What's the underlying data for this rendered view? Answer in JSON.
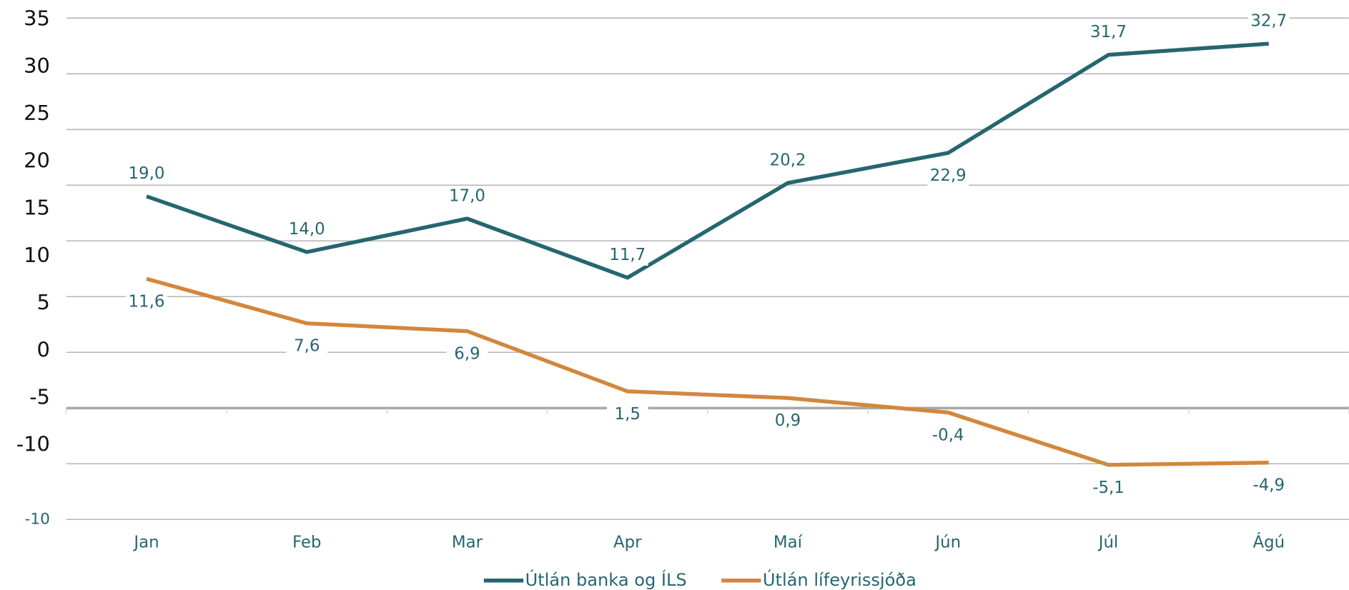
{
  "chart_data": {
    "type": "line",
    "categories": [
      "Jan",
      "Feb",
      "Mar",
      "Apr",
      "Maí",
      "Jún",
      "Júl",
      "Ágú"
    ],
    "series": [
      {
        "name": "Útlán banka og ÍLS",
        "color": "#256670",
        "values": [
          19.0,
          14.0,
          17.0,
          11.7,
          20.2,
          22.9,
          31.7,
          32.7
        ],
        "value_labels": [
          "19,0",
          "14,0",
          "17,0",
          "11,7",
          "20,2",
          "22,9",
          "31,7",
          "32,7"
        ]
      },
      {
        "name": "Útlán lífeyrissjóða",
        "color": "#d2873c",
        "values": [
          11.6,
          7.6,
          6.9,
          1.5,
          0.9,
          -0.4,
          -5.1,
          -4.9
        ],
        "value_labels": [
          "11,6",
          "7,6",
          "6,9",
          "1,5",
          "0,9",
          "-0,4",
          "-5,1",
          "-4,9"
        ]
      }
    ],
    "ylim": [
      -10,
      35
    ],
    "yticks": [
      -10,
      -5,
      0,
      5,
      10,
      15,
      20,
      25,
      30,
      35
    ],
    "ytick_overlay": [
      35,
      30,
      25,
      20,
      15,
      10,
      5,
      0,
      -5,
      -10
    ],
    "grid": true,
    "legend": "bottom"
  }
}
